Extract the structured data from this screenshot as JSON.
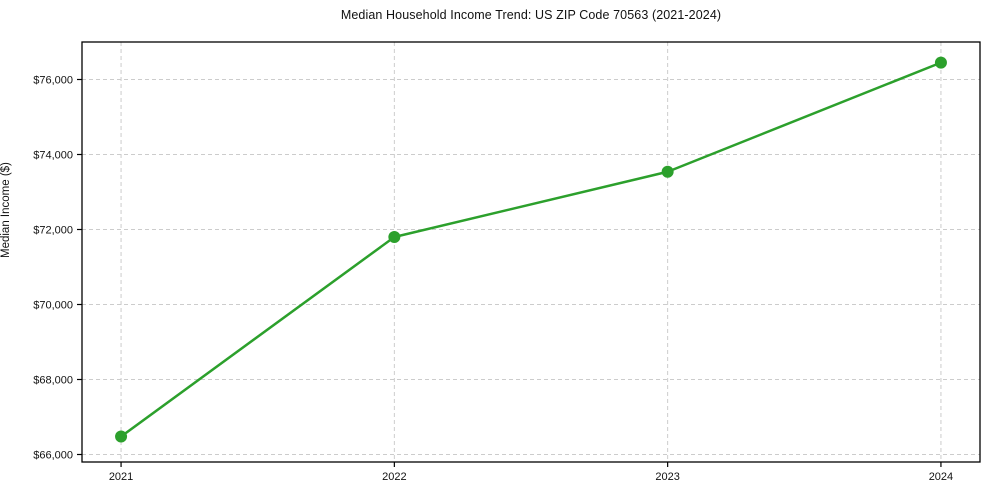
{
  "chart": {
    "title": "Median Household Income Trend: US ZIP Code 70563 (2021-2024)",
    "ylabel": "Median Income ($)"
  },
  "chart_data": {
    "type": "line",
    "title": "Median Household Income Trend: US ZIP Code 70563 (2021-2024)",
    "xlabel": "",
    "ylabel": "Median Income ($)",
    "categories": [
      "2021",
      "2022",
      "2023",
      "2024"
    ],
    "series": [
      {
        "name": "Median Household Income",
        "values": [
          66480,
          71800,
          73540,
          76450
        ],
        "color": "#2ca02c",
        "marker": "circle"
      }
    ],
    "ylim": [
      65800,
      77000
    ],
    "yticks": [
      66000,
      68000,
      70000,
      72000,
      74000,
      76000
    ],
    "ytick_labels": [
      "$66,000",
      "$68,000",
      "$70,000",
      "$72,000",
      "$74,000",
      "$76,000"
    ],
    "grid": true,
    "grid_style": "dashed",
    "grid_color": "#cccccc",
    "axis_color": "#000000",
    "legend": false
  }
}
